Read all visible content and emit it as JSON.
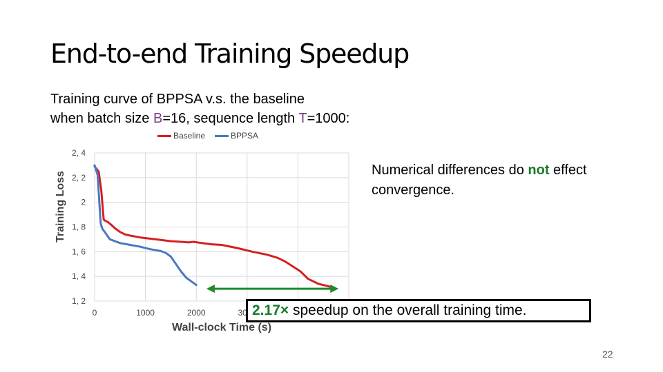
{
  "slide": {
    "title": "End-to-end Training Speedup",
    "subtitle_line1": "Training curve of BPPSA v.s. the baseline",
    "subtitle_line2_prefix": "when batch size ",
    "subtitle_b": "B",
    "subtitle_line2_mid": "=16, sequence length ",
    "subtitle_t": "T",
    "subtitle_line2_suffix": "=1000:",
    "note_prefix": "Numerical differences do ",
    "note_emphasis": "not",
    "note_suffix": " effect convergence.",
    "callout_multiplier": "2.17×",
    "callout_text": " speedup on the overall training time.",
    "page_number": "22"
  },
  "colors": {
    "baseline": "#d42020",
    "bppsa": "#4a78c0",
    "arrow": "#1f8a2a",
    "grid": "#d9d9d9"
  },
  "chart_data": {
    "type": "line",
    "xlabel": "Wall-clock Time (s)",
    "ylabel": "Training Loss",
    "xlim": [
      0,
      5000
    ],
    "ylim": [
      1.2,
      2.4
    ],
    "x_ticks": [
      0,
      1000,
      2000,
      3000
    ],
    "x_tick_labels": [
      "0",
      "1000",
      "2000",
      "3000"
    ],
    "y_ticks": [
      1.2,
      1.4,
      1.6,
      1.8,
      2.0,
      2.2,
      2.4
    ],
    "y_tick_labels": [
      "1, 2",
      "1, 4",
      "1, 6",
      "1, 8",
      "2",
      "2, 2",
      "2, 4"
    ],
    "grid": true,
    "legend_position": "top",
    "series": [
      {
        "name": "Baseline",
        "color": "#d42020",
        "x": [
          0,
          80,
          130,
          160,
          180,
          210,
          260,
          320,
          400,
          500,
          600,
          700,
          900,
          1100,
          1300,
          1500,
          1700,
          1850,
          1950,
          2100,
          2300,
          2500,
          2800,
          3100,
          3400,
          3600,
          3750,
          3900,
          4050,
          4200,
          4400,
          4700
        ],
        "y": [
          2.29,
          2.25,
          2.1,
          1.95,
          1.86,
          1.85,
          1.84,
          1.82,
          1.79,
          1.76,
          1.74,
          1.73,
          1.715,
          1.705,
          1.695,
          1.685,
          1.68,
          1.675,
          1.68,
          1.67,
          1.66,
          1.655,
          1.63,
          1.6,
          1.575,
          1.55,
          1.52,
          1.48,
          1.44,
          1.38,
          1.34,
          1.31
        ]
      },
      {
        "name": "BPPSA",
        "color": "#4a78c0",
        "x": [
          0,
          60,
          100,
          120,
          140,
          160,
          200,
          300,
          500,
          700,
          900,
          1100,
          1300,
          1400,
          1500,
          1600,
          1700,
          1800,
          1900,
          2000
        ],
        "y": [
          2.3,
          2.22,
          1.95,
          1.83,
          1.8,
          1.78,
          1.76,
          1.7,
          1.67,
          1.655,
          1.64,
          1.62,
          1.605,
          1.59,
          1.56,
          1.5,
          1.44,
          1.39,
          1.36,
          1.33
        ]
      }
    ],
    "annotation": {
      "type": "double-arrow",
      "x_start": 2200,
      "x_end": 4800,
      "y": 1.3
    }
  }
}
